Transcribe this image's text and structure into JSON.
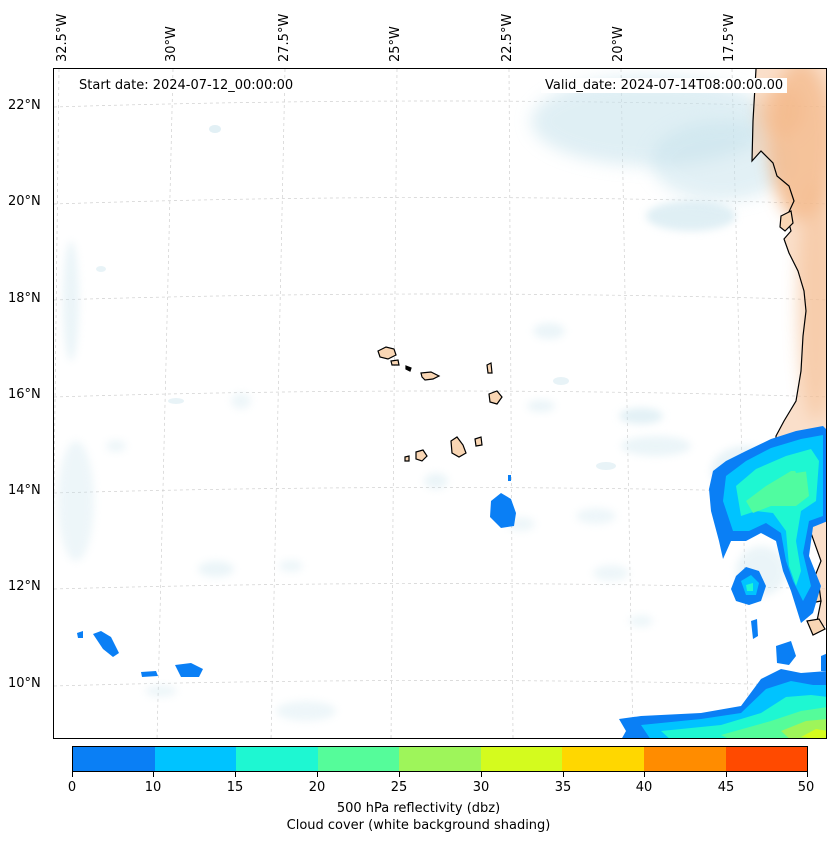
{
  "map": {
    "start_date": "Start date: 2024-07-12_00:00:00",
    "valid_date": "Valid_date: 2024-07-14T08:00:00.00",
    "lon_labels": [
      "32.5°W",
      "30°W",
      "27.5°W",
      "25°W",
      "22.5°W",
      "20°W",
      "17.5°W"
    ],
    "lat_labels": [
      "22°N",
      "20°N",
      "18°N",
      "16°N",
      "14°N",
      "12°N",
      "10°N"
    ],
    "extent": {
      "lon_min": -32.6,
      "lon_max": -15.6,
      "lat_min": 8.9,
      "lat_max": 22.8
    },
    "land_color": "#f9d6b4",
    "cloud_color": "#c6e2ec",
    "dust_color": "#f0a66a"
  },
  "colorbar": {
    "ticks": [
      "0",
      "5",
      "10",
      "15",
      "20",
      "25",
      "30",
      "35",
      "40",
      "45",
      "50"
    ],
    "colors": [
      "#0a7ff5",
      "#00c3ff",
      "#1ef7d2",
      "#55fc9a",
      "#9ef55a",
      "#d4fb1e",
      "#ffd700",
      "#ff8c00",
      "#ff4a00"
    ],
    "title": "500 hPa reflectivity (dbz)",
    "subtitle": "Cloud cover (white background shading)"
  }
}
